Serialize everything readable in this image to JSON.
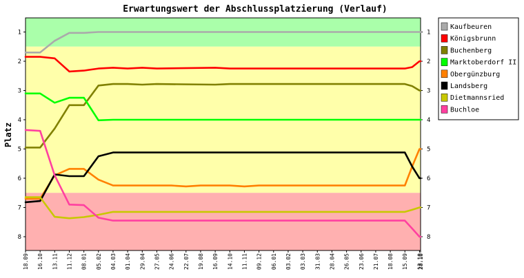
{
  "chart_data": {
    "type": "line",
    "title": "Erwartungswert der Abschlussplatzierung (Verlauf)",
    "ylabel": "Platz",
    "xlabel": "",
    "ylim": [
      8.5,
      0.5
    ],
    "y_ticks": [
      1,
      2,
      3,
      4,
      5,
      6,
      7,
      8
    ],
    "grid": false,
    "legend_position": "right",
    "bands": [
      {
        "from": 0.5,
        "to": 1.5,
        "color": "#aaffaa"
      },
      {
        "from": 1.5,
        "to": 6.5,
        "color": "#ffffaa"
      },
      {
        "from": 6.5,
        "to": 8.5,
        "color": "#ffb0b0"
      }
    ],
    "categories": [
      "18.09",
      "16.10",
      "13.11",
      "11.12",
      "08.01",
      "05.02",
      "04.03",
      "01.04",
      "29.04",
      "27.05",
      "24.06",
      "22.07",
      "19.08",
      "16.09",
      "14.10",
      "11.11",
      "09.12",
      "06.01",
      "03.02",
      "03.03",
      "31.03",
      "28.04",
      "26.05",
      "23.06",
      "21.07",
      "18.08",
      "15.09",
      "13.10",
      "28.10"
    ],
    "x_tick_values": [
      0,
      4,
      8,
      12,
      16,
      20,
      24,
      28,
      32,
      36,
      40,
      44,
      48,
      52,
      56,
      60,
      64,
      68,
      72,
      76,
      80,
      84,
      88,
      92,
      96,
      100,
      104,
      108,
      108.3
    ],
    "series": [
      {
        "name": "Kaufbeuren",
        "color": "#aaaaaa",
        "points": [
          [
            0,
            1.7
          ],
          [
            4,
            1.7
          ],
          [
            8,
            1.3
          ],
          [
            12,
            1.03
          ],
          [
            16,
            1.03
          ],
          [
            20,
            1
          ],
          [
            108.3,
            1
          ]
        ]
      },
      {
        "name": "Königsbrunn",
        "color": "#ff0000",
        "points": [
          [
            0,
            1.85
          ],
          [
            4,
            1.85
          ],
          [
            8,
            1.9
          ],
          [
            12,
            2.35
          ],
          [
            16,
            2.32
          ],
          [
            20,
            2.25
          ],
          [
            24,
            2.22
          ],
          [
            28,
            2.25
          ],
          [
            32,
            2.22
          ],
          [
            36,
            2.25
          ],
          [
            52,
            2.22
          ],
          [
            56,
            2.25
          ],
          [
            104,
            2.25
          ],
          [
            106,
            2.2
          ],
          [
            108,
            2
          ],
          [
            108.3,
            2
          ]
        ]
      },
      {
        "name": "Buchenberg",
        "color": "#808000",
        "points": [
          [
            0,
            4.95
          ],
          [
            4,
            4.95
          ],
          [
            8,
            4.3
          ],
          [
            12,
            3.5
          ],
          [
            16,
            3.5
          ],
          [
            20,
            2.83
          ],
          [
            24,
            2.78
          ],
          [
            28,
            2.78
          ],
          [
            32,
            2.8
          ],
          [
            36,
            2.78
          ],
          [
            52,
            2.8
          ],
          [
            56,
            2.78
          ],
          [
            104,
            2.78
          ],
          [
            106,
            2.85
          ],
          [
            108,
            3
          ],
          [
            108.3,
            3
          ]
        ]
      },
      {
        "name": "Marktoberdorf II",
        "color": "#00ff00",
        "points": [
          [
            0,
            3.1
          ],
          [
            4,
            3.1
          ],
          [
            8,
            3.42
          ],
          [
            12,
            3.25
          ],
          [
            16,
            3.25
          ],
          [
            20,
            4.02
          ],
          [
            24,
            4
          ],
          [
            108.3,
            4
          ]
        ]
      },
      {
        "name": "Obergünzburg",
        "color": "#ff8000",
        "points": [
          [
            0,
            6.7
          ],
          [
            4,
            6.7
          ],
          [
            8,
            5.9
          ],
          [
            12,
            5.68
          ],
          [
            16,
            5.68
          ],
          [
            20,
            6.05
          ],
          [
            24,
            6.25
          ],
          [
            40,
            6.25
          ],
          [
            44,
            6.28
          ],
          [
            48,
            6.25
          ],
          [
            56,
            6.25
          ],
          [
            60,
            6.28
          ],
          [
            64,
            6.25
          ],
          [
            104,
            6.25
          ],
          [
            106,
            5.6
          ],
          [
            108,
            5
          ],
          [
            108.3,
            5
          ]
        ]
      },
      {
        "name": "Landsberg",
        "color": "#000000",
        "points": [
          [
            0,
            6.82
          ],
          [
            4,
            6.78
          ],
          [
            8,
            5.87
          ],
          [
            12,
            5.93
          ],
          [
            16,
            5.93
          ],
          [
            20,
            5.25
          ],
          [
            24,
            5.12
          ],
          [
            104,
            5.12
          ],
          [
            106,
            5.6
          ],
          [
            108,
            6
          ],
          [
            108.3,
            6
          ]
        ]
      },
      {
        "name": "Dietmannsried",
        "color": "#c8c800",
        "points": [
          [
            0,
            6.65
          ],
          [
            4,
            6.65
          ],
          [
            8,
            7.32
          ],
          [
            12,
            7.37
          ],
          [
            16,
            7.33
          ],
          [
            20,
            7.25
          ],
          [
            24,
            7.15
          ],
          [
            104,
            7.15
          ],
          [
            106,
            7.08
          ],
          [
            108,
            7
          ],
          [
            108.3,
            7
          ]
        ]
      },
      {
        "name": "Buchloe",
        "color": "#ff40a0",
        "points": [
          [
            0,
            4.35
          ],
          [
            4,
            4.38
          ],
          [
            8,
            5.9
          ],
          [
            12,
            6.9
          ],
          [
            16,
            6.92
          ],
          [
            20,
            7.35
          ],
          [
            24,
            7.45
          ],
          [
            104,
            7.45
          ],
          [
            106,
            7.72
          ],
          [
            108,
            8
          ],
          [
            108.3,
            8
          ]
        ]
      }
    ]
  }
}
